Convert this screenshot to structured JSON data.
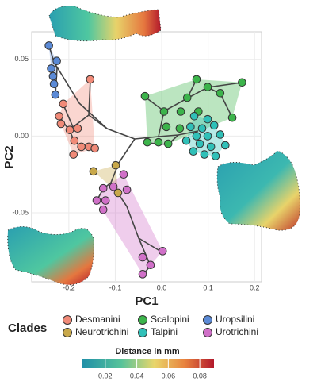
{
  "chart_data": {
    "type": "scatter",
    "x_label": "PC1",
    "y_label": "PC2",
    "legend_title": "Clades",
    "xlim": [
      -0.28,
      0.215
    ],
    "ylim": [
      -0.095,
      0.068
    ],
    "xticks": [
      -0.2,
      -0.1,
      {
        "value": 0,
        "label": "0.0"
      },
      0.1,
      0.2
    ],
    "yticks": [
      -0.05,
      {
        "value": 0,
        "label": "0.00"
      },
      0.05
    ],
    "grid": true,
    "series": [
      {
        "name": "Desmanini",
        "color": "#f08a78",
        "x": [
          -0.154,
          -0.212,
          -0.221,
          -0.217,
          -0.198,
          -0.181,
          -0.188,
          -0.173,
          -0.157,
          -0.144,
          -0.19
        ],
        "values": [
          0.037,
          0.021,
          0.013,
          0.008,
          0.004,
          0.005,
          -0.003,
          -0.007,
          -0.007,
          -0.008,
          -0.012
        ]
      },
      {
        "name": "Neurotrichini",
        "color": "#c8a84a",
        "x": [
          -0.099,
          -0.147,
          -0.094
        ],
        "values": [
          -0.019,
          -0.023,
          -0.037
        ]
      },
      {
        "name": "Scalopini",
        "color": "#3cb44b",
        "x": [
          -0.036,
          0.075,
          0.173,
          0.099,
          0.126,
          0.055,
          0.005,
          0.041,
          0.079,
          0.152,
          0.01,
          0.039,
          -0.031,
          -0.007,
          0.014
        ],
        "values": [
          0.026,
          0.037,
          0.035,
          0.032,
          0.028,
          0.025,
          0.016,
          0.016,
          0.016,
          0.012,
          0.006,
          0.005,
          -0.004,
          -0.004,
          -0.005
        ]
      },
      {
        "name": "Talpini",
        "color": "#30c0b8",
        "x": [
          0.07,
          0.099,
          0.062,
          0.087,
          0.113,
          0.075,
          0.099,
          0.126,
          0.053,
          0.082,
          0.106,
          0.137,
          0.068,
          0.092,
          0.116
        ],
        "values": [
          0.013,
          0.011,
          0.006,
          0.005,
          0.007,
          0.0,
          0.0,
          0.001,
          -0.003,
          -0.005,
          -0.007,
          -0.006,
          -0.01,
          -0.012,
          -0.013
        ]
      },
      {
        "name": "Uropsilini",
        "color": "#5b8ad6",
        "x": [
          -0.243,
          -0.226,
          -0.238,
          -0.234,
          -0.232,
          -0.229
        ],
        "values": [
          0.059,
          0.049,
          0.044,
          0.039,
          0.034,
          0.027
        ]
      },
      {
        "name": "Urotrichini",
        "color": "#d070c8",
        "x": [
          -0.082,
          -0.126,
          -0.104,
          -0.075,
          -0.14,
          -0.121,
          -0.126,
          -0.041,
          0.002,
          -0.024,
          -0.041
        ],
        "values": [
          -0.025,
          -0.034,
          -0.033,
          -0.035,
          -0.042,
          -0.042,
          -0.048,
          -0.079,
          -0.075,
          -0.084,
          -0.09
        ]
      }
    ],
    "colorbar": {
      "title": "Distance in mm",
      "lim": [
        0.005,
        0.089
      ],
      "ticks": [
        0.02,
        0.04,
        0.06,
        0.08
      ]
    }
  }
}
